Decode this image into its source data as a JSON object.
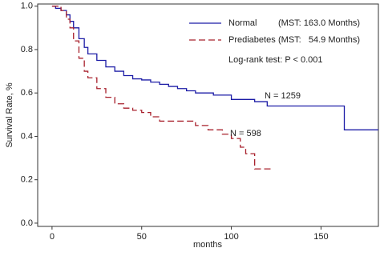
{
  "chart_data": {
    "type": "step",
    "ylabel": "Survival Rate, %",
    "xlabel": "months",
    "xlim": [
      -8,
      182
    ],
    "ylim": [
      -0.015,
      1.01
    ],
    "xticks": [
      0,
      50,
      100,
      150
    ],
    "yticks": [
      {
        "value": 0,
        "label": "0.0"
      },
      {
        "value": 0.2,
        "label": "0.2"
      },
      {
        "value": 0.4,
        "label": "0.4"
      },
      {
        "value": 0.6,
        "label": "0.6"
      },
      {
        "value": 0.8,
        "label": "0.8"
      },
      {
        "value": 1,
        "label": "1.0"
      }
    ],
    "series": [
      {
        "name": "Normal",
        "note": "(MST: 163.0 Months)",
        "color": "#1c1ca6",
        "dash": false,
        "end_label": "N = 1259",
        "x": [
          0,
          2,
          5,
          8,
          10,
          12,
          15,
          18,
          20,
          25,
          30,
          35,
          40,
          45,
          50,
          55,
          60,
          65,
          70,
          75,
          80,
          90,
          100,
          113,
          120,
          163,
          182
        ],
        "values": [
          1.0,
          0.99,
          0.98,
          0.96,
          0.93,
          0.9,
          0.85,
          0.81,
          0.78,
          0.75,
          0.72,
          0.7,
          0.68,
          0.665,
          0.66,
          0.65,
          0.64,
          0.63,
          0.62,
          0.61,
          0.6,
          0.59,
          0.57,
          0.56,
          0.54,
          0.43,
          0.43
        ]
      },
      {
        "name": "Prediabetes",
        "note": "(MST:   54.9 Months)",
        "color": "#a8202c",
        "dash": true,
        "end_label": "N = 598",
        "x": [
          0,
          5,
          8,
          10,
          12,
          15,
          18,
          20,
          25,
          30,
          35,
          40,
          45,
          50,
          55,
          60,
          75,
          80,
          87,
          95,
          100,
          105,
          108,
          113,
          122
        ],
        "values": [
          1.0,
          0.98,
          0.94,
          0.9,
          0.84,
          0.76,
          0.7,
          0.67,
          0.62,
          0.58,
          0.55,
          0.53,
          0.52,
          0.51,
          0.49,
          0.47,
          0.47,
          0.45,
          0.43,
          0.41,
          0.39,
          0.35,
          0.32,
          0.25,
          0.25
        ]
      }
    ],
    "annotation": "Log-rank test: P < 0.001"
  }
}
